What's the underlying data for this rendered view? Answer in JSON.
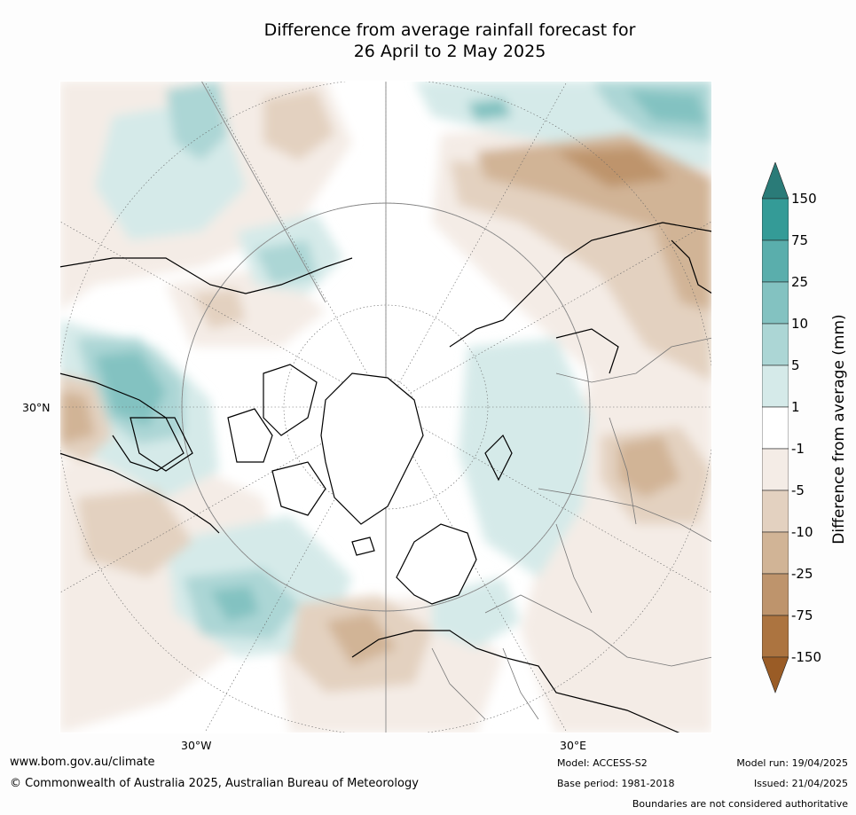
{
  "title": {
    "line1": "Difference from average rainfall forecast for",
    "line2": "26 April to 2 May 2025"
  },
  "map": {
    "projection": "north polar stereographic",
    "lon_labels": [
      "30°W",
      "30°E"
    ],
    "lat_label": "30°N"
  },
  "colorbar": {
    "title": "Difference from average (mm)",
    "tick_labels": [
      "150",
      "75",
      "25",
      "10",
      "5",
      "1",
      "-1",
      "-5",
      "-10",
      "-25",
      "-75",
      "-150"
    ],
    "colors": {
      "above_150": "#2a7b78",
      "75_150": "#349b97",
      "25_75": "#5aaeac",
      "10_25": "#83c2c1",
      "5_10": "#acd6d5",
      "1_5": "#d5eae9",
      "neutral": "#ffffff",
      "m5_m1": "#f4ece6",
      "m10_m5": "#e3d1c0",
      "m25_m10": "#d1b496",
      "m75_m25": "#be946c",
      "m150_m75": "#ac7440",
      "below_m150": "#9a5c26"
    }
  },
  "footer": {
    "url": "www.bom.gov.au/climate",
    "copyright": "© Commonwealth of Australia 2025, Australian Bureau of Meteorology",
    "model": "Model: ACCESS-S2",
    "base_period": "Base period: 1981-2018",
    "model_run": "Model run: 19/04/2025",
    "issued": "Issued: 21/04/2025",
    "disclaimer": "Boundaries are not considered authoritative"
  }
}
